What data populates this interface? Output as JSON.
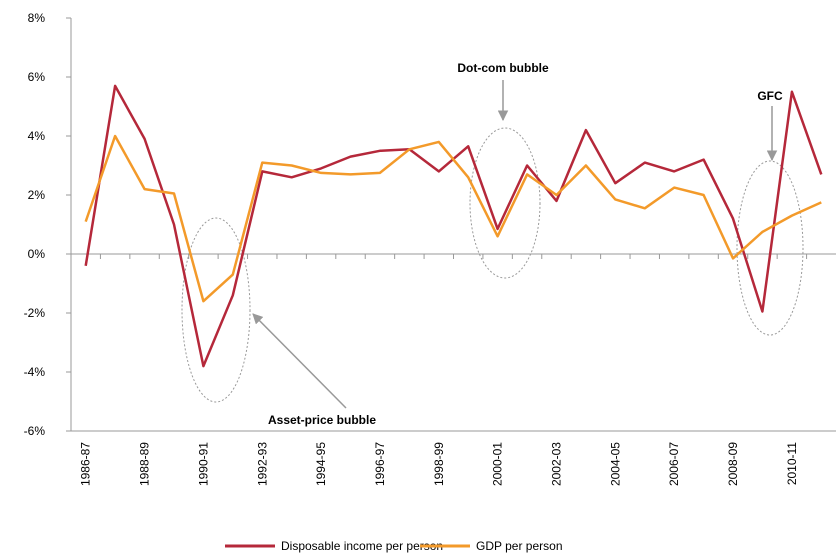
{
  "chart_data": {
    "type": "line",
    "categories": [
      "1986-87",
      null,
      "1988-89",
      null,
      "1990-91",
      null,
      "1992-93",
      null,
      "1994-95",
      null,
      "1996-97",
      null,
      "1998-99",
      null,
      "2000-01",
      null,
      "2002-03",
      null,
      "2004-05",
      null,
      "2006-07",
      null,
      "2008-09",
      null,
      "2010-11",
      null
    ],
    "series": [
      {
        "name": "Disposable income per person",
        "color": "#b5283a",
        "values": [
          -0.4,
          5.7,
          3.9,
          1.0,
          -3.8,
          -1.4,
          2.8,
          2.6,
          2.9,
          3.3,
          3.5,
          3.55,
          2.8,
          3.65,
          0.85,
          3.0,
          1.8,
          4.2,
          2.4,
          3.1,
          2.8,
          3.2,
          1.2,
          -1.95,
          5.5,
          2.7
        ]
      },
      {
        "name": "GDP per person",
        "color": "#f39a2a",
        "values": [
          1.1,
          4.0,
          2.2,
          2.05,
          -1.6,
          -0.7,
          3.1,
          3.0,
          2.75,
          2.7,
          2.75,
          3.55,
          3.8,
          2.6,
          0.6,
          2.7,
          2.0,
          3.0,
          1.85,
          1.55,
          2.25,
          2.0,
          -0.15,
          0.75,
          1.3,
          1.75
        ]
      }
    ],
    "ylim": [
      -6,
      8
    ],
    "yticks": [
      {
        "value": -6,
        "label": "-6%"
      },
      {
        "value": -4,
        "label": "-4%"
      },
      {
        "value": -2,
        "label": "-2%"
      },
      {
        "value": 0,
        "label": "0%"
      },
      {
        "value": 2,
        "label": "2%"
      },
      {
        "value": 4,
        "label": "4%"
      },
      {
        "value": 6,
        "label": "6%"
      },
      {
        "value": 8,
        "label": "8%"
      }
    ],
    "annotations": [
      "Dot-com bubble",
      "GFC",
      "Asset-price bubble"
    ],
    "legend": "bottom",
    "grid": false
  }
}
